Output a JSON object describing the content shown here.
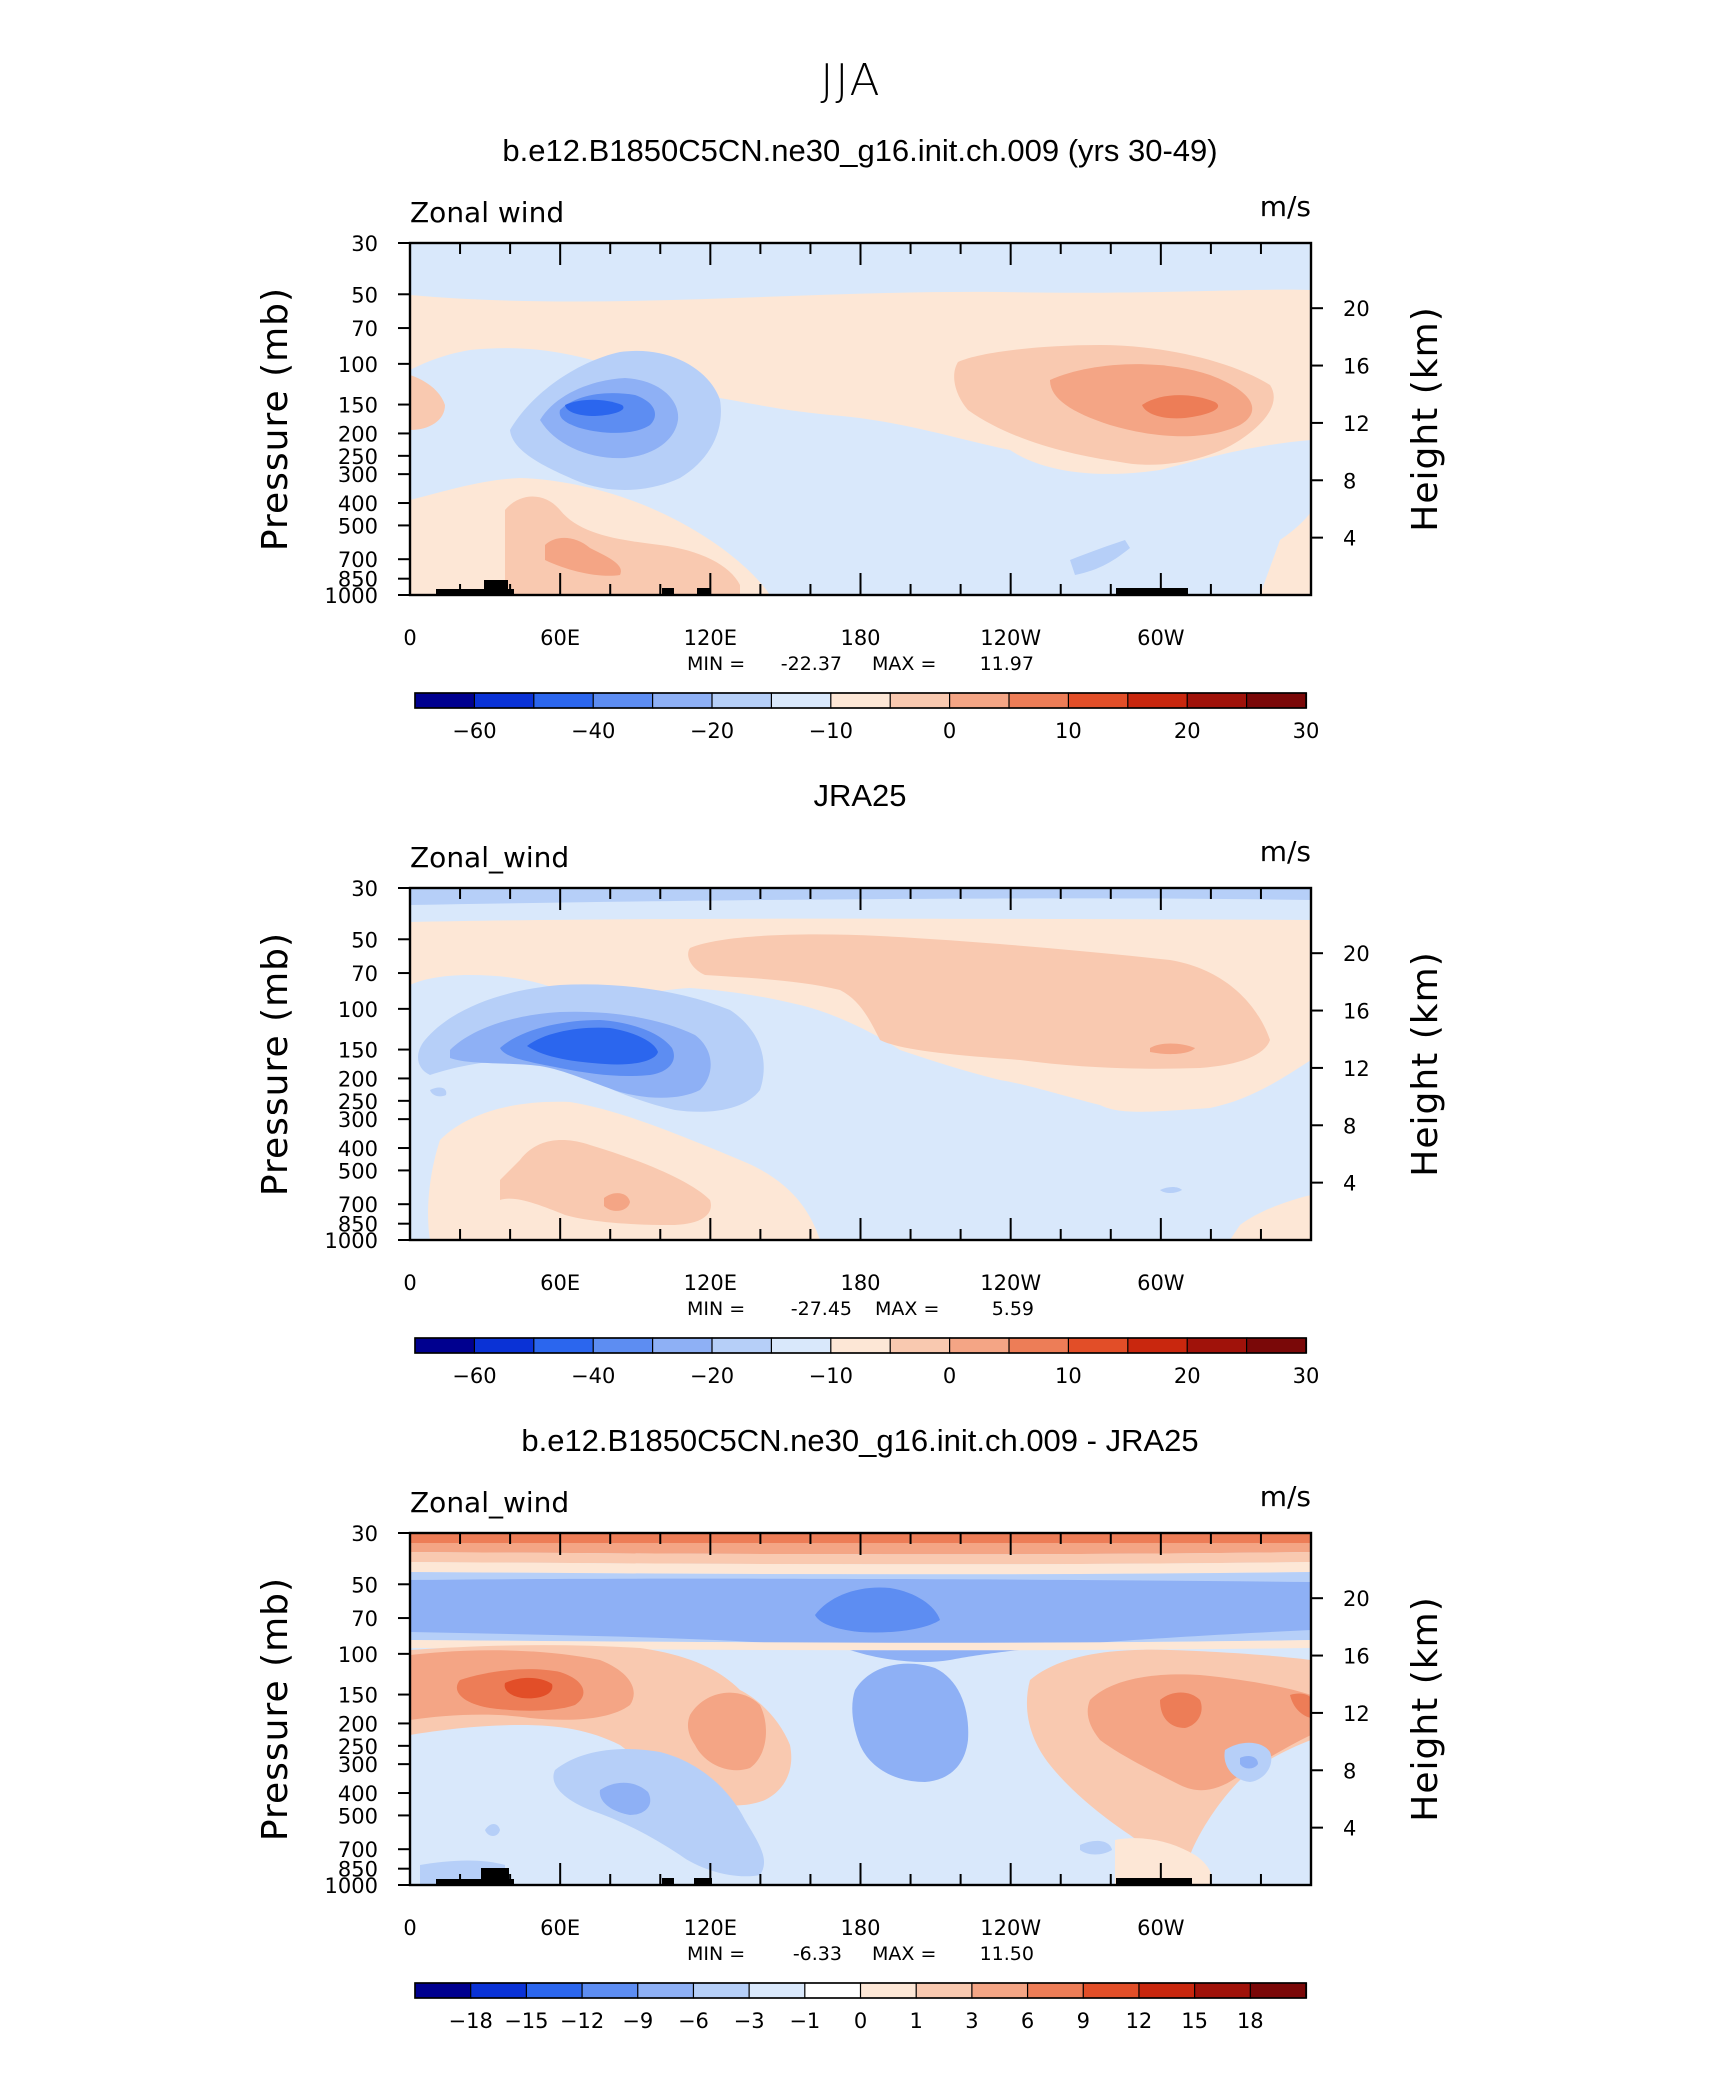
{
  "figure": {
    "title": "JJA"
  },
  "chart_data": [
    {
      "type": "heatmap",
      "title": "b.e12.B1850C5CN.ne30_g16.init.ch.009 (yrs 30-49)",
      "variable": "Zonal wind",
      "units": "m/s",
      "ylabel": "Pressure (mb)",
      "ylabel_right": "Height (km)",
      "x_ticks": [
        "0",
        "60E",
        "120E",
        "180",
        "120W",
        "60W"
      ],
      "y_ticks": [
        "30",
        "50",
        "70",
        "100",
        "150",
        "200",
        "250",
        "300",
        "400",
        "500",
        "700",
        "850",
        "1000"
      ],
      "y_ticks_right": [
        "20",
        "16",
        "12",
        "8",
        "4"
      ],
      "min_label": "MIN =",
      "min": "-22.37",
      "max_label": "MAX =",
      "max": "11.97",
      "colorbar_labels": [
        "-60",
        "-40",
        "-20",
        "-10",
        "0",
        "10",
        "20",
        "30"
      ],
      "colorbar_colors": [
        "#00008f",
        "#0a32d6",
        "#2b66ee",
        "#5d8df2",
        "#8eb0f5",
        "#b6cff8",
        "#d9e8fb",
        "#fde7d6",
        "#f9c9b0",
        "#f4a585",
        "#ed7d57",
        "#e24e28",
        "#c9270e",
        "#a0120a",
        "#7a0808"
      ]
    },
    {
      "type": "heatmap",
      "title": "JRA25",
      "variable": "Zonal_wind",
      "units": "m/s",
      "ylabel": "Pressure (mb)",
      "ylabel_right": "Height (km)",
      "x_ticks": [
        "0",
        "60E",
        "120E",
        "180",
        "120W",
        "60W"
      ],
      "y_ticks": [
        "30",
        "50",
        "70",
        "100",
        "150",
        "200",
        "250",
        "300",
        "400",
        "500",
        "700",
        "850",
        "1000"
      ],
      "y_ticks_right": [
        "20",
        "16",
        "12",
        "8",
        "4"
      ],
      "min_label": "MIN =",
      "min": "-27.45",
      "max_label": "MAX =",
      "max": "5.59",
      "colorbar_labels": [
        "-60",
        "-40",
        "-20",
        "-10",
        "0",
        "10",
        "20",
        "30"
      ],
      "colorbar_colors": [
        "#00008f",
        "#0a32d6",
        "#2b66ee",
        "#5d8df2",
        "#8eb0f5",
        "#b6cff8",
        "#d9e8fb",
        "#fde7d6",
        "#f9c9b0",
        "#f4a585",
        "#ed7d57",
        "#e24e28",
        "#c9270e",
        "#a0120a",
        "#7a0808"
      ]
    },
    {
      "type": "heatmap",
      "title": "b.e12.B1850C5CN.ne30_g16.init.ch.009 - JRA25",
      "variable": "Zonal_wind",
      "units": "m/s",
      "ylabel": "Pressure (mb)",
      "ylabel_right": "Height (km)",
      "x_ticks": [
        "0",
        "60E",
        "120E",
        "180",
        "120W",
        "60W"
      ],
      "y_ticks": [
        "30",
        "50",
        "70",
        "100",
        "150",
        "200",
        "250",
        "300",
        "400",
        "500",
        "700",
        "850",
        "1000"
      ],
      "y_ticks_right": [
        "20",
        "16",
        "12",
        "8",
        "4"
      ],
      "min_label": "MIN =",
      "min": "-6.33",
      "max_label": "MAX =",
      "max": "11.50",
      "colorbar_labels": [
        "-18",
        "-15",
        "-12",
        "-9",
        "-6",
        "-3",
        "-1",
        "0",
        "1",
        "3",
        "6",
        "9",
        "12",
        "15",
        "18"
      ],
      "colorbar_colors": [
        "#00008f",
        "#0a32d6",
        "#2b66ee",
        "#5d8df2",
        "#8eb0f5",
        "#b6cff8",
        "#d9e8fb",
        "#ffffff",
        "#fde7d6",
        "#f9c9b0",
        "#f4a585",
        "#ed7d57",
        "#e24e28",
        "#c9270e",
        "#a0120a",
        "#7a0808"
      ]
    }
  ]
}
